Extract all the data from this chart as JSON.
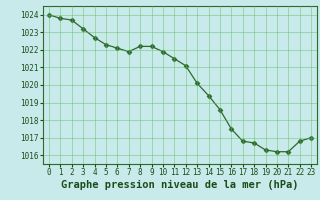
{
  "x": [
    0,
    1,
    2,
    3,
    4,
    5,
    6,
    7,
    8,
    9,
    10,
    11,
    12,
    13,
    14,
    15,
    16,
    17,
    18,
    19,
    20,
    21,
    22,
    23
  ],
  "y": [
    1024.0,
    1023.8,
    1023.7,
    1023.2,
    1022.7,
    1022.3,
    1022.1,
    1021.9,
    1022.2,
    1022.2,
    1021.9,
    1021.5,
    1021.1,
    1020.1,
    1019.4,
    1018.6,
    1017.5,
    1016.8,
    1016.7,
    1016.3,
    1016.2,
    1016.2,
    1016.8,
    1017.0
  ],
  "line_color": "#2d6a2d",
  "marker": "D",
  "marker_size": 2.5,
  "bg_color": "#c8eaea",
  "grid_color": "#5cb85c",
  "xlabel": "Graphe pression niveau de la mer (hPa)",
  "xlabel_fontsize": 7.5,
  "ylim": [
    1015.5,
    1024.5
  ],
  "xlim": [
    -0.5,
    23.5
  ],
  "yticks": [
    1016,
    1017,
    1018,
    1019,
    1020,
    1021,
    1022,
    1023,
    1024
  ],
  "xticks": [
    0,
    1,
    2,
    3,
    4,
    5,
    6,
    7,
    8,
    9,
    10,
    11,
    12,
    13,
    14,
    15,
    16,
    17,
    18,
    19,
    20,
    21,
    22,
    23
  ],
  "tick_fontsize": 5.5,
  "tick_color": "#1a4d1a",
  "spine_color": "#2d6a2d"
}
